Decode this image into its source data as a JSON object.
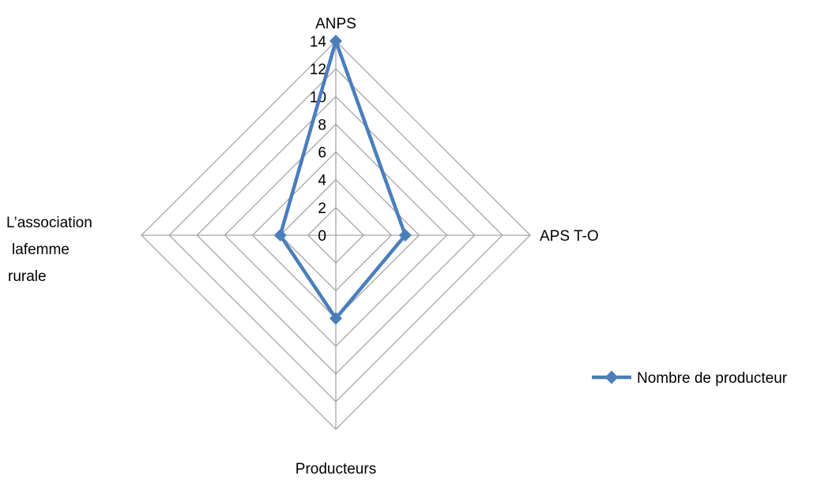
{
  "chart_data": {
    "type": "radar",
    "categories": [
      "ANPS",
      "APS T-O",
      "Producteurs",
      "L’association lafemme rurale"
    ],
    "category_lines": [
      [
        "ANPS"
      ],
      [
        "APS T-O"
      ],
      [
        "Producteurs"
      ],
      [
        "L’association",
        "lafemme",
        "rurale"
      ]
    ],
    "series": [
      {
        "name": "Nombre de producteur",
        "values": [
          14,
          5,
          6,
          4
        ],
        "color": "#4a7ebb"
      }
    ],
    "rlim": [
      0,
      14
    ],
    "tick_values": [
      0,
      2,
      4,
      6,
      8,
      10,
      12,
      14
    ],
    "tick_labels": [
      "0",
      "2",
      "4",
      "6",
      "8",
      "10",
      "12",
      "14"
    ],
    "grid": true,
    "grid_color": "#a6a6a6",
    "legend": {
      "position": "right",
      "entries": [
        "Nombre de producteur"
      ]
    }
  }
}
